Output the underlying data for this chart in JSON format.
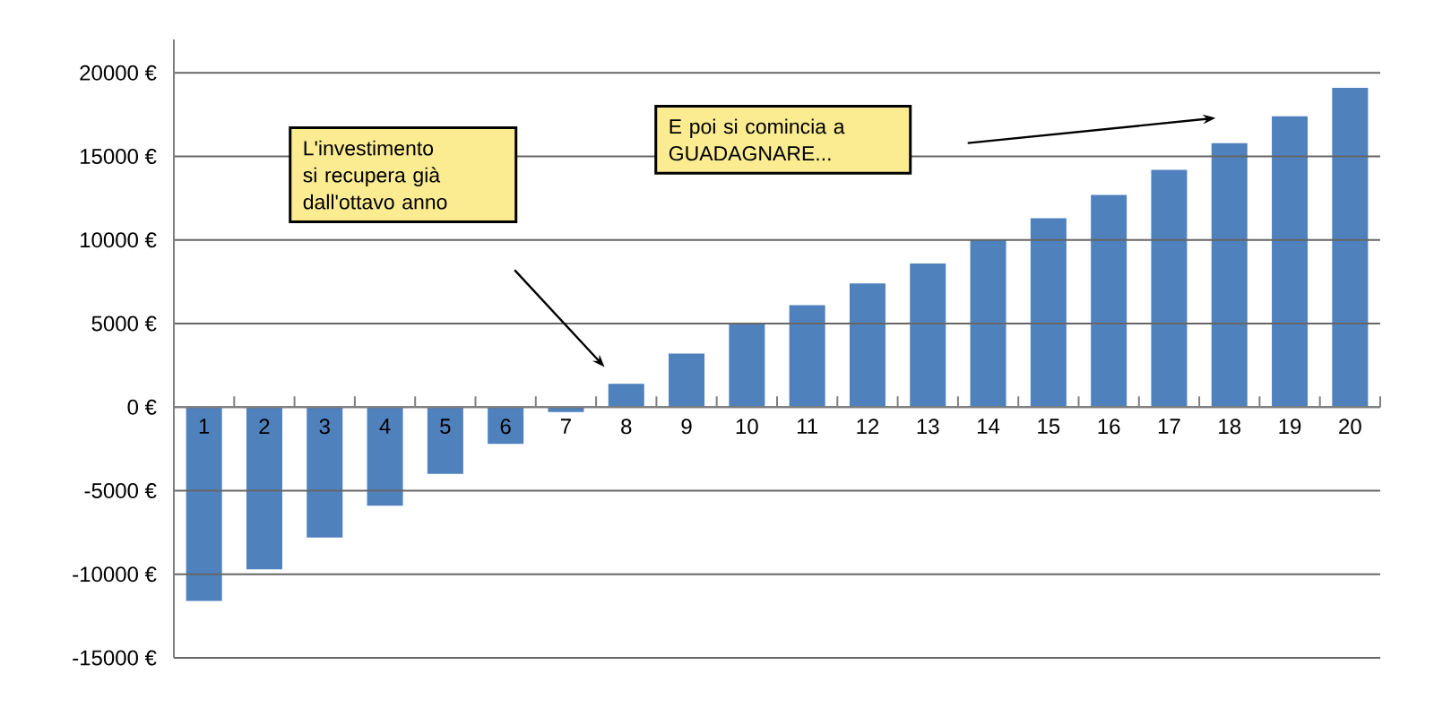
{
  "chart_data": {
    "type": "bar",
    "categories": [
      "1",
      "2",
      "3",
      "4",
      "5",
      "6",
      "7",
      "8",
      "9",
      "10",
      "11",
      "12",
      "13",
      "14",
      "15",
      "16",
      "17",
      "18",
      "19",
      "20"
    ],
    "values": [
      -11600,
      -9700,
      -7800,
      -5900,
      -4000,
      -2200,
      -300,
      1400,
      3200,
      5000,
      6100,
      7400,
      8600,
      10000,
      11300,
      12700,
      14200,
      15800,
      17400,
      19100
    ],
    "color": "#4f81bd",
    "ylim": [
      -15000,
      22000
    ],
    "yticks": [
      {
        "value": -15000,
        "label": "-15000 €"
      },
      {
        "value": -10000,
        "label": "-10000 €"
      },
      {
        "value": -5000,
        "label": "-5000 €"
      },
      {
        "value": 0,
        "label": "0 €"
      },
      {
        "value": 5000,
        "label": "5000 €"
      },
      {
        "value": 10000,
        "label": "10000 €"
      },
      {
        "value": 15000,
        "label": "15000 €"
      },
      {
        "value": 20000,
        "label": "20000 €"
      }
    ],
    "grid": "y",
    "annotations": [
      "L'investimento si recupera già dall'ottavo anno",
      "E poi si comincia a GUADAGNARE..."
    ]
  }
}
